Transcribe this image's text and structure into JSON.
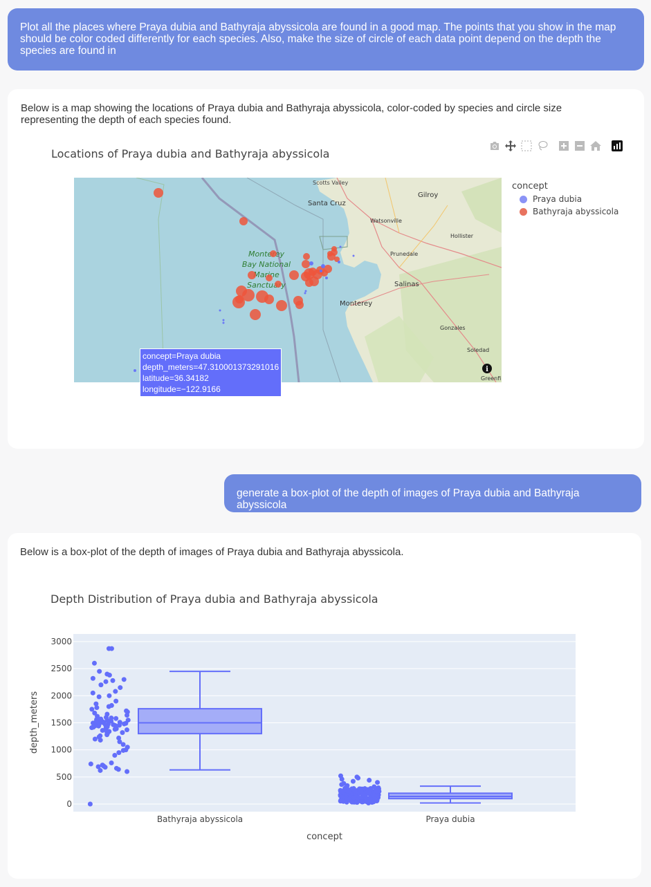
{
  "messages": {
    "user1": "Plot all the places where Praya dubia and Bathyraja abyssicola are found in a good map. The points that you show in the map should be color coded differently for each species. Also, make the size of circle of each data point depend on the depth the species are found in",
    "assistant1": "Below is a map showing the locations of Praya dubia and Bathyraja abyssicola, color-coded by species and circle size representing the depth of each species found.",
    "user2": "generate a box-plot of the depth of images of Praya dubia and Bathyraja abyssicola",
    "assistant2": "Below is a box-plot of the depth of images of Praya dubia and Bathyraja abyssicola."
  },
  "map": {
    "title": "Locations of Praya dubia and Bathyraja abyssicola",
    "legend_title": "concept",
    "legend": [
      {
        "name": "Praya dubia",
        "color": "#8b93f6"
      },
      {
        "name": "Bathyraja abyssicola",
        "color": "#e8735f"
      }
    ],
    "places": {
      "scotts_valley": "Scotts Valley",
      "santa_cruz": "Santa Cruz",
      "gilroy": "Gilroy",
      "watsonville": "Watsonville",
      "hollister": "Hollister",
      "prunedale": "Prunedale",
      "salinas": "Salinas",
      "monterey": "Monterey",
      "gonzales": "Gonzales",
      "soledad": "Soledad",
      "greenfield": "Greenfi",
      "sanctuary_line1": "Monterey",
      "sanctuary_line2": "Bay National",
      "sanctuary_line3": "Marine",
      "sanctuary_line4": "Sanctuary"
    },
    "tooltip": {
      "concept": "concept=Praya dubia",
      "depth": "depth_meters=47.310001373291016",
      "latitude": "latitude=36.34182",
      "longitude": "longitude=−122.9166"
    },
    "colors": {
      "water": "#aad3df",
      "land": "#e9ead6",
      "praya": "#636efa",
      "bathy": "#ef553b"
    }
  },
  "chart_data": {
    "type": "box",
    "title": "Depth Distribution of Praya dubia and Bathyraja abyssicola",
    "xlabel": "concept",
    "ylabel": "depth_meters",
    "categories": [
      "Bathyraja abyssicola",
      "Praya dubia"
    ],
    "ylim": [
      -140,
      3140
    ],
    "yticks": [
      0,
      500,
      1000,
      1500,
      2000,
      2500,
      3000
    ],
    "series": [
      {
        "name": "Bathyraja abyssicola",
        "color": "#636efa",
        "box": {
          "min": 630,
          "q1": 1300,
          "median": 1500,
          "q3": 1760,
          "max": 2450
        },
        "points": [
          2870,
          2870,
          2600,
          2450,
          2400,
          2380,
          2320,
          2300,
          2280,
          2260,
          2200,
          2150,
          2080,
          2050,
          2000,
          1980,
          1900,
          1850,
          1820,
          1800,
          1780,
          1750,
          1720,
          1700,
          1680,
          1660,
          1640,
          1620,
          1600,
          1590,
          1580,
          1570,
          1560,
          1550,
          1545,
          1540,
          1530,
          1520,
          1515,
          1510,
          1505,
          1500,
          1495,
          1490,
          1485,
          1480,
          1475,
          1470,
          1465,
          1460,
          1455,
          1450,
          1445,
          1440,
          1430,
          1420,
          1410,
          1400,
          1390,
          1380,
          1370,
          1360,
          1350,
          1340,
          1330,
          1320,
          1300,
          1280,
          1260,
          1240,
          1220,
          1200,
          1180,
          1150,
          1100,
          1050,
          1000,
          990,
          950,
          900,
          760,
          740,
          720,
          700,
          690,
          680,
          660,
          640,
          620,
          600,
          0
        ]
      },
      {
        "name": "Praya dubia",
        "color": "#636efa",
        "box": {
          "min": 20,
          "q1": 100,
          "median": 140,
          "q3": 200,
          "max": 330
        },
        "points": [
          520,
          500,
          480,
          460,
          440,
          420,
          400,
          380,
          360,
          340,
          320,
          300,
          290,
          280,
          270,
          260,
          250,
          240,
          230,
          220,
          210,
          200,
          190,
          180,
          170,
          160,
          150,
          140,
          130,
          120,
          110,
          100,
          90,
          80,
          70,
          60,
          50,
          40,
          30,
          20
        ]
      }
    ]
  }
}
